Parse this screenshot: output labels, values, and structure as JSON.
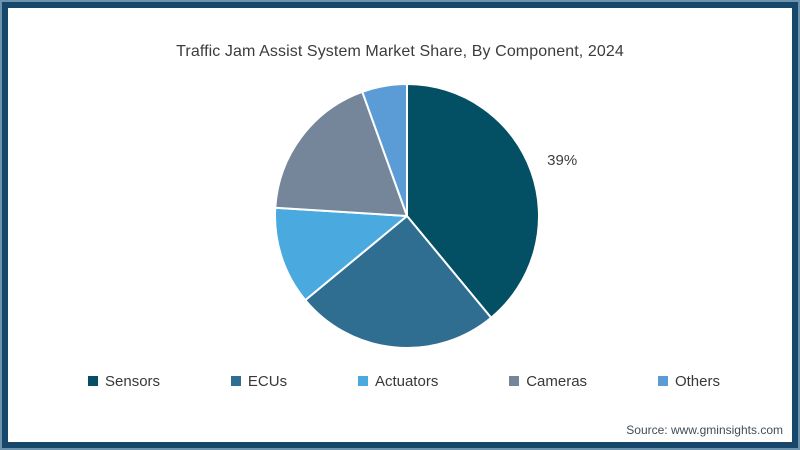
{
  "chart_data": {
    "type": "pie",
    "title": "Traffic Jam Assist System Market Share, By Component, 2024",
    "legend_position": "bottom",
    "direction": "clockwise",
    "start_angle_deg": 0,
    "slice_border_color": "#ffffff",
    "data_label_color": "#3d3d3d",
    "slices": [
      {
        "label": "Sensors",
        "value": 39,
        "color": "#034f63",
        "data_label": "39%"
      },
      {
        "label": "ECUs",
        "value": 25,
        "color": "#2f6e91",
        "data_label": ""
      },
      {
        "label": "Actuators",
        "value": 12,
        "color": "#4aaae0",
        "data_label": ""
      },
      {
        "label": "Cameras",
        "value": 18.5,
        "color": "#75869b",
        "data_label": ""
      },
      {
        "label": "Others",
        "value": 5.5,
        "color": "#5b9cd6",
        "data_label": ""
      }
    ]
  },
  "source": "Source: www.gminsights.com",
  "frame": {
    "outer_edge_color": "#6e93ad",
    "border_color": "#17486b",
    "background": "#ffffff"
  }
}
